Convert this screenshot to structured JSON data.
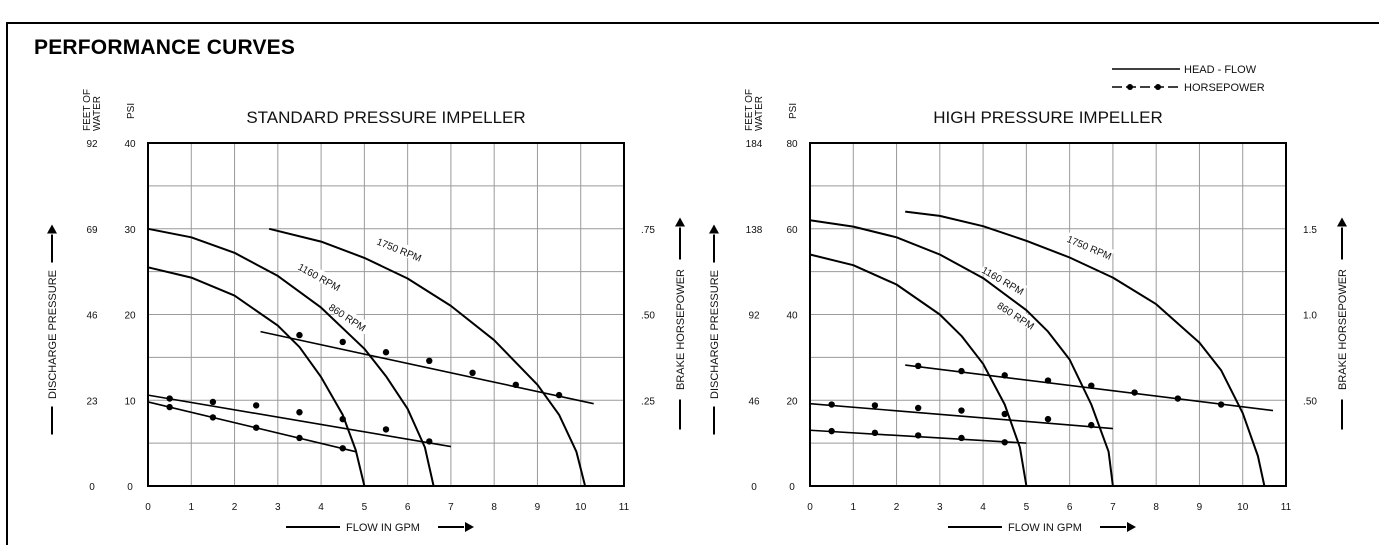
{
  "page": {
    "title": "PERFORMANCE CURVES"
  },
  "legend": {
    "head_flow": "HEAD - FLOW",
    "horsepower": "HORSEPOWER"
  },
  "chart_data": [
    {
      "type": "line",
      "title": "STANDARD PRESSURE IMPELLER",
      "xlabel": "FLOW IN GPM",
      "ylabel_left": "DISCHARGE PRESSURE",
      "ylabel_right": "BRAKE HORSEPOWER",
      "axis_head_feet": "FEET OF WATER",
      "axis_head_psi": "PSI",
      "xlim": [
        0,
        11
      ],
      "ylim": [
        0,
        40
      ],
      "grid": true,
      "x_ticks": [
        "0",
        "1",
        "2",
        "3",
        "4",
        "5",
        "6",
        "7",
        "8",
        "9",
        "10",
        "11"
      ],
      "y_ticks_psi": [
        "0",
        "10",
        "20",
        "30",
        "40"
      ],
      "y_ticks_feet": [
        "0",
        "23",
        "46",
        "69",
        "92"
      ],
      "hp_ticks": [
        {
          "value": 0.25,
          "label": ".25"
        },
        {
          "value": 0.5,
          "label": ".50"
        },
        {
          "value": 0.75,
          "label": ".75"
        }
      ],
      "hp_scale_max": 1.0,
      "head_curves": [
        {
          "name": "860 RPM",
          "label_at": [
            4.6,
            19.6
          ],
          "label_angle": 33,
          "points": [
            [
              0,
              25.5
            ],
            [
              1,
              24.3
            ],
            [
              2,
              22.2
            ],
            [
              3,
              18.7
            ],
            [
              3.5,
              16.2
            ],
            [
              4,
              12.7
            ],
            [
              4.5,
              8.3
            ],
            [
              4.8,
              4.2
            ],
            [
              5,
              0
            ]
          ]
        },
        {
          "name": "1160 RPM",
          "label_at": [
            3.95,
            24.3
          ],
          "label_angle": 29,
          "points": [
            [
              0,
              30
            ],
            [
              1,
              29
            ],
            [
              2,
              27.2
            ],
            [
              3,
              24.5
            ],
            [
              4,
              20.8
            ],
            [
              5,
              16
            ],
            [
              5.5,
              12.8
            ],
            [
              6,
              9
            ],
            [
              6.4,
              4.5
            ],
            [
              6.6,
              0
            ]
          ]
        },
        {
          "name": "1750 RPM",
          "label_at": [
            5.8,
            27.5
          ],
          "label_angle": 22,
          "points": [
            [
              2.8,
              30
            ],
            [
              4,
              28.5
            ],
            [
              5,
              26.6
            ],
            [
              6,
              24.2
            ],
            [
              7,
              21
            ],
            [
              8,
              17
            ],
            [
              9,
              11.8
            ],
            [
              9.5,
              8.3
            ],
            [
              9.9,
              4
            ],
            [
              10.1,
              0
            ]
          ]
        }
      ],
      "hp_curves": [
        {
          "rpm": "860 RPM",
          "x": [
            0.5,
            1.5,
            2.5,
            3.5,
            4.5
          ],
          "hp": [
            0.23,
            0.2,
            0.17,
            0.14,
            0.11
          ],
          "line_x": [
            0,
            4.8
          ],
          "line_hp": [
            0.245,
            0.1
          ]
        },
        {
          "rpm": "1160 RPM",
          "x": [
            0.5,
            1.5,
            2.5,
            3.5,
            4.5,
            5.5,
            6.5
          ],
          "hp": [
            0.255,
            0.245,
            0.235,
            0.215,
            0.195,
            0.165,
            0.13
          ],
          "line_x": [
            0,
            7
          ],
          "line_hp": [
            0.265,
            0.115
          ]
        },
        {
          "rpm": "1750 RPM",
          "x": [
            3.5,
            4.5,
            5.5,
            6.5,
            7.5,
            8.5,
            9.5
          ],
          "hp": [
            0.44,
            0.42,
            0.39,
            0.365,
            0.33,
            0.295,
            0.265
          ],
          "line_x": [
            2.6,
            10.3
          ],
          "line_hp": [
            0.45,
            0.24
          ]
        }
      ]
    },
    {
      "type": "line",
      "title": "HIGH PRESSURE IMPELLER",
      "xlabel": "FLOW IN GPM",
      "ylabel_left": "DISCHARGE PRESSURE",
      "ylabel_right": "BRAKE HORSEPOWER",
      "axis_head_feet": "FEET OF WATER",
      "axis_head_psi": "PSI",
      "xlim": [
        0,
        11
      ],
      "ylim": [
        0,
        80
      ],
      "grid": true,
      "x_ticks": [
        "0",
        "1",
        "2",
        "3",
        "4",
        "5",
        "6",
        "7",
        "8",
        "9",
        "10",
        "11"
      ],
      "y_ticks_psi": [
        "0",
        "20",
        "40",
        "60",
        "80"
      ],
      "y_ticks_feet": [
        "0",
        "46",
        "92",
        "138",
        "184"
      ],
      "hp_ticks": [
        {
          "value": 0.5,
          "label": ".50"
        },
        {
          "value": 1.0,
          "label": "1.0"
        },
        {
          "value": 1.5,
          "label": "1.5"
        }
      ],
      "hp_scale_max": 2.0,
      "head_curves": [
        {
          "name": "860 RPM",
          "label_at": [
            4.75,
            39.6
          ],
          "label_angle": 33,
          "points": [
            [
              0,
              54
            ],
            [
              1,
              51.5
            ],
            [
              2,
              47
            ],
            [
              3,
              40
            ],
            [
              3.5,
              35
            ],
            [
              4,
              28.5
            ],
            [
              4.5,
              19
            ],
            [
              4.85,
              9
            ],
            [
              5,
              0
            ]
          ]
        },
        {
          "name": "1160 RPM",
          "label_at": [
            4.45,
            47.8
          ],
          "label_angle": 30,
          "points": [
            [
              0,
              62
            ],
            [
              1,
              60.5
            ],
            [
              2,
              58
            ],
            [
              3,
              54
            ],
            [
              4,
              48.5
            ],
            [
              5,
              41
            ],
            [
              5.5,
              36
            ],
            [
              6,
              29.5
            ],
            [
              6.5,
              19
            ],
            [
              6.9,
              8
            ],
            [
              7,
              0
            ]
          ]
        },
        {
          "name": "1750 RPM",
          "label_at": [
            6.45,
            55.5
          ],
          "label_angle": 23,
          "points": [
            [
              2.2,
              64
            ],
            [
              3,
              63
            ],
            [
              4,
              60.6
            ],
            [
              5,
              57.2
            ],
            [
              6,
              53.3
            ],
            [
              7,
              48.6
            ],
            [
              8,
              42.4
            ],
            [
              9,
              33.4
            ],
            [
              9.5,
              27
            ],
            [
              10,
              17
            ],
            [
              10.35,
              7
            ],
            [
              10.5,
              0
            ]
          ]
        }
      ],
      "hp_curves": [
        {
          "rpm": "860 RPM",
          "x": [
            0.5,
            1.5,
            2.5,
            3.5,
            4.5
          ],
          "hp": [
            0.32,
            0.31,
            0.295,
            0.28,
            0.255
          ],
          "line_x": [
            0,
            5
          ],
          "line_hp": [
            0.325,
            0.25
          ]
        },
        {
          "rpm": "1160 RPM",
          "x": [
            0.5,
            1.5,
            2.5,
            3.5,
            4.5,
            5.5,
            6.5
          ],
          "hp": [
            0.475,
            0.47,
            0.455,
            0.44,
            0.42,
            0.39,
            0.355
          ],
          "line_x": [
            0,
            7
          ],
          "line_hp": [
            0.48,
            0.335
          ]
        },
        {
          "rpm": "1750 RPM",
          "x": [
            2.5,
            3.5,
            4.5,
            5.5,
            6.5,
            7.5,
            8.5,
            9.5
          ],
          "hp": [
            0.7,
            0.67,
            0.645,
            0.615,
            0.585,
            0.545,
            0.51,
            0.475
          ],
          "line_x": [
            2.2,
            10.7
          ],
          "line_hp": [
            0.705,
            0.44
          ]
        }
      ]
    }
  ]
}
